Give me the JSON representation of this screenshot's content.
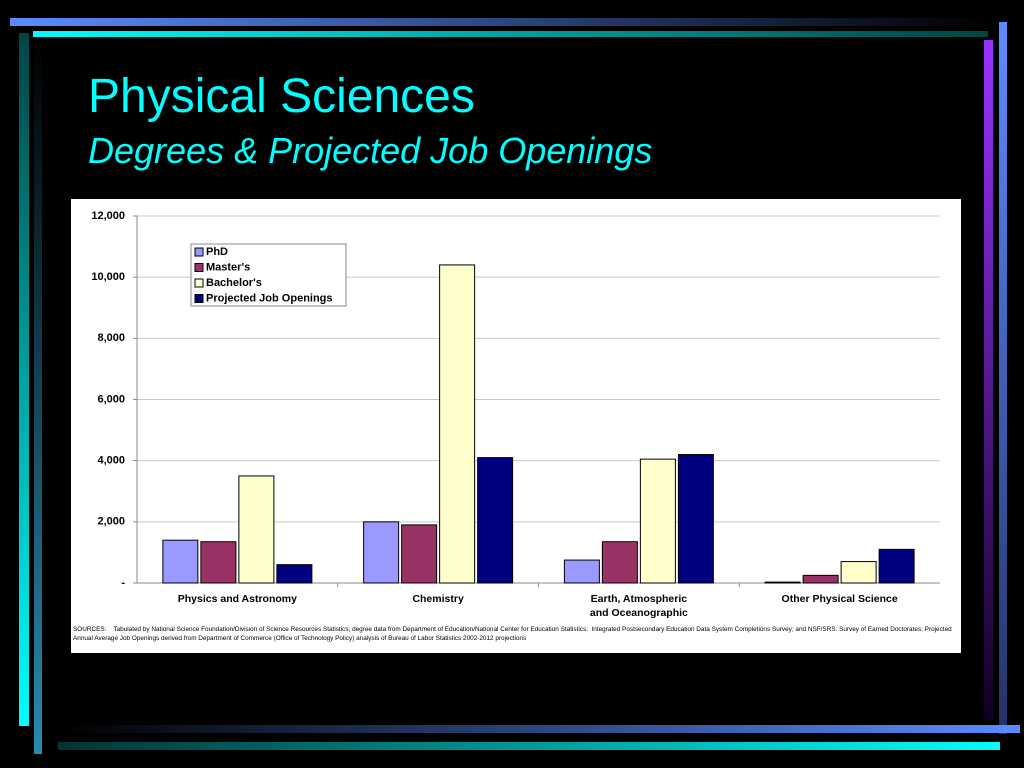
{
  "chart_data": {
    "type": "bar",
    "title": "Physical Sciences",
    "subtitle": "Degrees & Projected Job Openings",
    "categories": [
      "Physics and Astronomy",
      "Chemistry",
      "Earth, Atmospheric\nand Oceanographic",
      "Other Physical Science"
    ],
    "series": [
      {
        "name": "PhD",
        "color": "#9999ff",
        "values": [
          1400,
          2000,
          750,
          30
        ]
      },
      {
        "name": "Master's",
        "color": "#993366",
        "values": [
          1350,
          1900,
          1350,
          250
        ]
      },
      {
        "name": "Bachelor's",
        "color": "#ffffcc",
        "values": [
          3500,
          10400,
          4050,
          700
        ]
      },
      {
        "name": "Projected Job Openings",
        "color": "#000080",
        "values": [
          600,
          4100,
          4200,
          1100
        ]
      }
    ],
    "ylim": [
      0,
      12000
    ],
    "yticks": [
      {
        "value": 0,
        "label": "-"
      },
      {
        "value": 2000,
        "label": "2,000"
      },
      {
        "value": 4000,
        "label": "4,000"
      },
      {
        "value": 6000,
        "label": "6,000"
      },
      {
        "value": 8000,
        "label": "8,000"
      },
      {
        "value": 10000,
        "label": "10,000"
      },
      {
        "value": 12000,
        "label": "12,000"
      }
    ],
    "grid": true,
    "legend": "top-left",
    "note": "SOURCES:    Tabulated by National Science Foundation/Division of Science Resources Statistics; degree data from Department of Education/National Center for Education Statistics:  Integrated Postsecondary Education Data System Completions Survey; and NSF/SRS: Survey of Earned Doctorates; Projected Annual Average Job Openings derived from Department of Commerce (Office of Technology Policy) analysis of Bureau of Labor Statistics 2002-2012 projections"
  }
}
